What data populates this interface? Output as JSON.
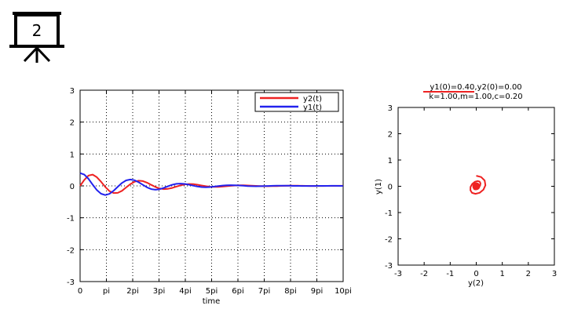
{
  "slide_badge": {
    "number": "2",
    "icon": "projector-screen-icon"
  },
  "chart_data": [
    {
      "type": "line",
      "title": "",
      "xlabel": "time",
      "ylabel": "",
      "x_ticks": [
        "0",
        "pi",
        "2pi",
        "3pi",
        "4pi",
        "5pi",
        "6pi",
        "7pi",
        "8pi",
        "9pi",
        "10pi"
      ],
      "y_ticks": [
        "-3",
        "-2",
        "-1",
        "0",
        "1",
        "2",
        "3"
      ],
      "xlim": [
        0,
        31.4159
      ],
      "ylim": [
        -3,
        3
      ],
      "grid": true,
      "legend_position": "top-right",
      "series": [
        {
          "name": "y2(t)",
          "color": "#ee2222",
          "x": [
            0,
            0.5,
            1,
            1.5,
            2,
            2.5,
            3,
            3.5,
            4,
            4.5,
            5,
            5.5,
            6,
            6.5,
            7,
            7.5,
            8,
            8.5,
            9,
            9.5,
            10,
            10.5,
            11,
            11.5,
            12,
            12.5,
            13,
            13.5,
            14,
            14.5,
            15,
            15.5,
            16,
            16.5,
            17,
            17.5,
            18,
            18.5,
            19,
            19.5,
            20,
            20.5,
            21,
            21.5,
            22,
            22.5,
            23,
            23.5,
            24,
            24.5,
            25,
            25.5,
            26,
            26.5,
            27,
            27.5,
            28,
            28.5,
            29,
            29.5,
            30,
            30.5,
            31,
            31.4
          ],
          "y": [
            0,
            0.186,
            0.324,
            0.353,
            0.274,
            0.13,
            -0.031,
            -0.163,
            -0.223,
            -0.22,
            -0.154,
            -0.049,
            0.054,
            0.13,
            0.163,
            0.151,
            0.1,
            0.031,
            -0.035,
            -0.082,
            -0.1,
            -0.092,
            -0.063,
            -0.023,
            0.017,
            0.047,
            0.058,
            0.053,
            0.037,
            0.013,
            -0.009,
            -0.026,
            -0.033,
            -0.031,
            -0.022,
            -0.01,
            0.003,
            0.012,
            0.017,
            0.017,
            0.012,
            0.006,
            -0.001,
            -0.006,
            -0.009,
            -0.009,
            -0.007,
            -0.004,
            0,
            0.003,
            0.005,
            0.005,
            0.004,
            0.002,
            0,
            -0.002,
            -0.003,
            -0.003,
            -0.002,
            -0.001,
            0,
            0.001,
            0.002,
            0.002
          ]
        },
        {
          "name": "y1(t)",
          "color": "#2222ee",
          "x": [
            0,
            0.5,
            1,
            1.5,
            2,
            2.5,
            3,
            3.5,
            4,
            4.5,
            5,
            5.5,
            6,
            6.5,
            7,
            7.5,
            8,
            8.5,
            9,
            9.5,
            10,
            10.5,
            11,
            11.5,
            12,
            12.5,
            13,
            13.5,
            14,
            14.5,
            15,
            15.5,
            16,
            16.5,
            17,
            17.5,
            18,
            18.5,
            19,
            19.5,
            20,
            20.5,
            21,
            21.5,
            22,
            22.5,
            23,
            23.5,
            24,
            24.5,
            25,
            25.5,
            26,
            26.5,
            27,
            27.5,
            28,
            28.5,
            29,
            29.5,
            30,
            30.5,
            31,
            31.4
          ],
          "y": [
            0.4,
            0.353,
            0.221,
            0.04,
            -0.13,
            -0.247,
            -0.288,
            -0.25,
            -0.152,
            -0.027,
            0.09,
            0.172,
            0.2,
            0.176,
            0.113,
            0.032,
            -0.046,
            -0.101,
            -0.12,
            -0.103,
            -0.063,
            -0.011,
            0.035,
            0.064,
            0.072,
            0.062,
            0.038,
            0.008,
            -0.02,
            -0.036,
            -0.042,
            -0.036,
            -0.022,
            -0.005,
            0.01,
            0.02,
            0.023,
            0.02,
            0.013,
            0.004,
            -0.004,
            -0.01,
            -0.012,
            -0.011,
            -0.007,
            -0.002,
            0.002,
            0.005,
            0.006,
            0.006,
            0.004,
            0.001,
            -0.001,
            -0.003,
            -0.003,
            -0.003,
            -0.002,
            -0.001,
            0,
            0.001,
            0.002,
            0.002,
            0.001,
            0.001
          ]
        }
      ]
    },
    {
      "type": "line",
      "title": "y1(0)=0.40,y2(0)=0.00",
      "subtitle": "k=1.00,m=1.00,c=0.20",
      "xlabel": "y(2)",
      "ylabel": "y(1)",
      "x_ticks": [
        "-3",
        "-2",
        "-1",
        "0",
        "1",
        "2",
        "3"
      ],
      "y_ticks": [
        "-3",
        "-2",
        "-1",
        "0",
        "1",
        "2",
        "3"
      ],
      "xlim": [
        -3,
        3
      ],
      "ylim": [
        -3,
        3
      ],
      "grid": false,
      "marker": {
        "x": 0,
        "y": 0,
        "color": "#ee2222"
      },
      "series": [
        {
          "color": "#ee2222",
          "x": [
            0,
            0.186,
            0.324,
            0.353,
            0.274,
            0.13,
            -0.031,
            -0.163,
            -0.223,
            -0.22,
            -0.154,
            -0.049,
            0.054,
            0.13,
            0.163,
            0.151,
            0.1,
            0.031,
            -0.035,
            -0.082,
            -0.1,
            -0.092,
            -0.063,
            -0.023,
            0.017,
            0.047,
            0.058,
            0.053,
            0.037,
            0.013,
            -0.009,
            -0.026,
            -0.033,
            -0.031,
            -0.022,
            -0.01,
            0.003,
            0.012,
            0.017,
            0.017,
            0.012,
            0.006,
            -0.001,
            -0.006,
            -0.009,
            -0.009,
            -0.007,
            -0.004,
            0,
            0.003,
            0.005,
            0.005,
            0.004,
            0.002,
            0,
            -0.002,
            -0.003,
            -0.003,
            -0.002,
            -0.001,
            0,
            0.001,
            0.002,
            0.002
          ],
          "y": [
            0.4,
            0.353,
            0.221,
            0.04,
            -0.13,
            -0.247,
            -0.288,
            -0.25,
            -0.152,
            -0.027,
            0.09,
            0.172,
            0.2,
            0.176,
            0.113,
            0.032,
            -0.046,
            -0.101,
            -0.12,
            -0.103,
            -0.063,
            -0.011,
            0.035,
            0.064,
            0.072,
            0.062,
            0.038,
            0.008,
            -0.02,
            -0.036,
            -0.042,
            -0.036,
            -0.022,
            -0.005,
            0.01,
            0.02,
            0.023,
            0.02,
            0.013,
            0.004,
            -0.004,
            -0.01,
            -0.012,
            -0.011,
            -0.007,
            -0.002,
            0.002,
            0.005,
            0.006,
            0.006,
            0.004,
            0.001,
            -0.001,
            -0.003,
            -0.003,
            -0.003,
            -0.002,
            -0.001,
            0,
            0.001,
            0.002,
            0.002,
            0.001,
            0.001
          ]
        }
      ]
    }
  ]
}
